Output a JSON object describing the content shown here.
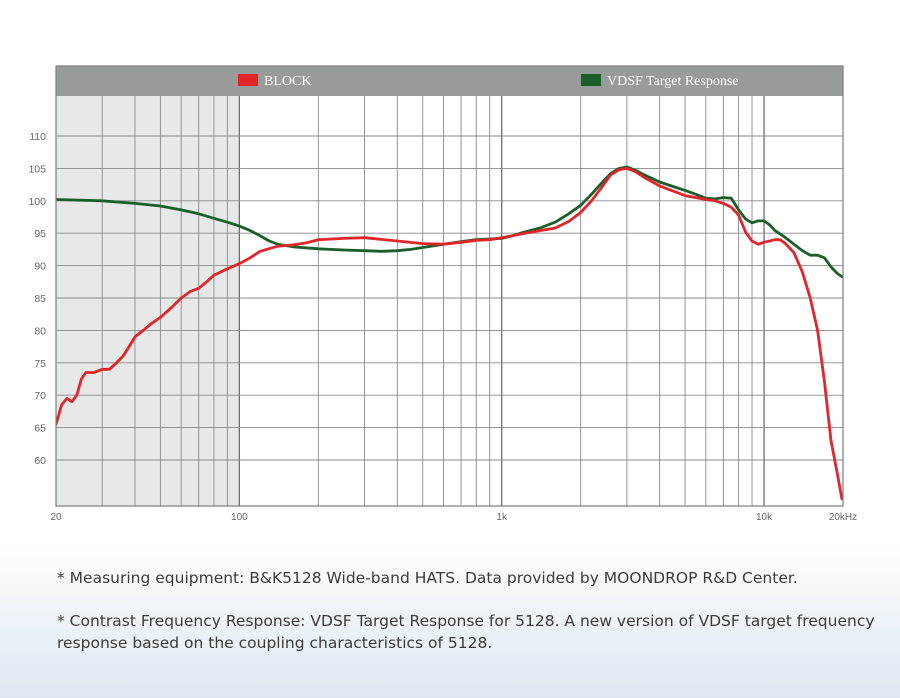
{
  "chart_data": {
    "type": "line",
    "xscale": "log",
    "xlim": [
      20,
      20000
    ],
    "ylim": [
      55,
      115
    ],
    "grid": true,
    "legend_position": "top",
    "yticks": [
      60,
      65,
      70,
      75,
      80,
      85,
      90,
      95,
      100,
      105,
      110
    ],
    "xticks": [
      {
        "value": 20,
        "label": "20"
      },
      {
        "value": 100,
        "label": "100"
      },
      {
        "value": 1000,
        "label": "1k"
      },
      {
        "value": 10000,
        "label": "10k"
      },
      {
        "value": 20000,
        "label": "20kHz"
      }
    ],
    "series": [
      {
        "name": "BLOCK",
        "color": "#e0262b",
        "points": [
          [
            20,
            65.5
          ],
          [
            21,
            68.5
          ],
          [
            22,
            69.5
          ],
          [
            23,
            69
          ],
          [
            24,
            70
          ],
          [
            25,
            72.5
          ],
          [
            26,
            73.5
          ],
          [
            28,
            73.5
          ],
          [
            30,
            74
          ],
          [
            32,
            74
          ],
          [
            34,
            75
          ],
          [
            36,
            76
          ],
          [
            38,
            77.5
          ],
          [
            40,
            79
          ],
          [
            43,
            80
          ],
          [
            46,
            81
          ],
          [
            50,
            82
          ],
          [
            55,
            83.5
          ],
          [
            60,
            85
          ],
          [
            65,
            86
          ],
          [
            70,
            86.5
          ],
          [
            75,
            87.5
          ],
          [
            80,
            88.5
          ],
          [
            90,
            89.5
          ],
          [
            100,
            90.3
          ],
          [
            110,
            91.2
          ],
          [
            120,
            92.2
          ],
          [
            140,
            93
          ],
          [
            160,
            93.2
          ],
          [
            180,
            93.5
          ],
          [
            200,
            94
          ],
          [
            250,
            94.2
          ],
          [
            300,
            94.3
          ],
          [
            400,
            93.8
          ],
          [
            500,
            93.4
          ],
          [
            600,
            93.3
          ],
          [
            700,
            93.6
          ],
          [
            800,
            93.9
          ],
          [
            900,
            94
          ],
          [
            1000,
            94.3
          ],
          [
            1200,
            94.9
          ],
          [
            1400,
            95.4
          ],
          [
            1600,
            95.8
          ],
          [
            1800,
            96.8
          ],
          [
            2000,
            98.2
          ],
          [
            2200,
            100
          ],
          [
            2400,
            102
          ],
          [
            2600,
            104
          ],
          [
            2800,
            104.8
          ],
          [
            3000,
            105
          ],
          [
            3200,
            104.6
          ],
          [
            3500,
            103.6
          ],
          [
            4000,
            102.3
          ],
          [
            4500,
            101.5
          ],
          [
            5000,
            100.8
          ],
          [
            5500,
            100.5
          ],
          [
            6000,
            100.2
          ],
          [
            6500,
            100
          ],
          [
            7000,
            99.6
          ],
          [
            7500,
            99
          ],
          [
            8000,
            97.8
          ],
          [
            8500,
            95.2
          ],
          [
            9000,
            93.8
          ],
          [
            9500,
            93.3
          ],
          [
            10000,
            93.6
          ],
          [
            11000,
            94
          ],
          [
            11500,
            94
          ],
          [
            12000,
            93.5
          ],
          [
            13000,
            92
          ],
          [
            14000,
            89
          ],
          [
            15000,
            85
          ],
          [
            16000,
            80
          ],
          [
            17000,
            72
          ],
          [
            18000,
            63
          ],
          [
            19000,
            58
          ],
          [
            19800,
            54
          ]
        ]
      },
      {
        "name": "VDSF Target Response",
        "color": "#1a5f2a",
        "points": [
          [
            20,
            100.2
          ],
          [
            30,
            100
          ],
          [
            40,
            99.6
          ],
          [
            50,
            99.2
          ],
          [
            60,
            98.6
          ],
          [
            70,
            98
          ],
          [
            80,
            97.3
          ],
          [
            90,
            96.7
          ],
          [
            100,
            96.1
          ],
          [
            110,
            95.4
          ],
          [
            120,
            94.6
          ],
          [
            130,
            93.8
          ],
          [
            140,
            93.3
          ],
          [
            160,
            92.9
          ],
          [
            200,
            92.6
          ],
          [
            250,
            92.4
          ],
          [
            300,
            92.3
          ],
          [
            350,
            92.2
          ],
          [
            400,
            92.3
          ],
          [
            450,
            92.5
          ],
          [
            500,
            92.8
          ],
          [
            600,
            93.3
          ],
          [
            700,
            93.7
          ],
          [
            800,
            94
          ],
          [
            900,
            94.1
          ],
          [
            1000,
            94.2
          ],
          [
            1100,
            94.6
          ],
          [
            1200,
            95.1
          ],
          [
            1400,
            95.8
          ],
          [
            1600,
            96.7
          ],
          [
            1800,
            98
          ],
          [
            2000,
            99.3
          ],
          [
            2200,
            101
          ],
          [
            2400,
            102.7
          ],
          [
            2600,
            104.2
          ],
          [
            2800,
            105
          ],
          [
            3000,
            105.2
          ],
          [
            3200,
            104.8
          ],
          [
            3500,
            104
          ],
          [
            4000,
            102.9
          ],
          [
            4500,
            102.2
          ],
          [
            5000,
            101.6
          ],
          [
            5500,
            101
          ],
          [
            6000,
            100.4
          ],
          [
            6500,
            100.3
          ],
          [
            7000,
            100.5
          ],
          [
            7500,
            100.4
          ],
          [
            8000,
            98.6
          ],
          [
            8500,
            97.2
          ],
          [
            9000,
            96.6
          ],
          [
            9500,
            96.9
          ],
          [
            10000,
            96.9
          ],
          [
            10500,
            96.3
          ],
          [
            11000,
            95.4
          ],
          [
            12000,
            94.4
          ],
          [
            13000,
            93.3
          ],
          [
            14000,
            92.3
          ],
          [
            15000,
            91.6
          ],
          [
            16000,
            91.6
          ],
          [
            17000,
            91.2
          ],
          [
            18000,
            89.8
          ],
          [
            19000,
            88.8
          ],
          [
            20000,
            88.2
          ]
        ]
      }
    ],
    "shaded_region": {
      "from": 20,
      "to": 100
    }
  },
  "notes": [
    "* Measuring equipment: B&K5128 Wide-band HATS. Data provided by MOONDROP R&D Center.",
    "* Contrast Frequency Response: VDSF Target Response for 5128.  A new version of VDSF target frequency\nresponse based on the coupling characteristics of 5128."
  ]
}
